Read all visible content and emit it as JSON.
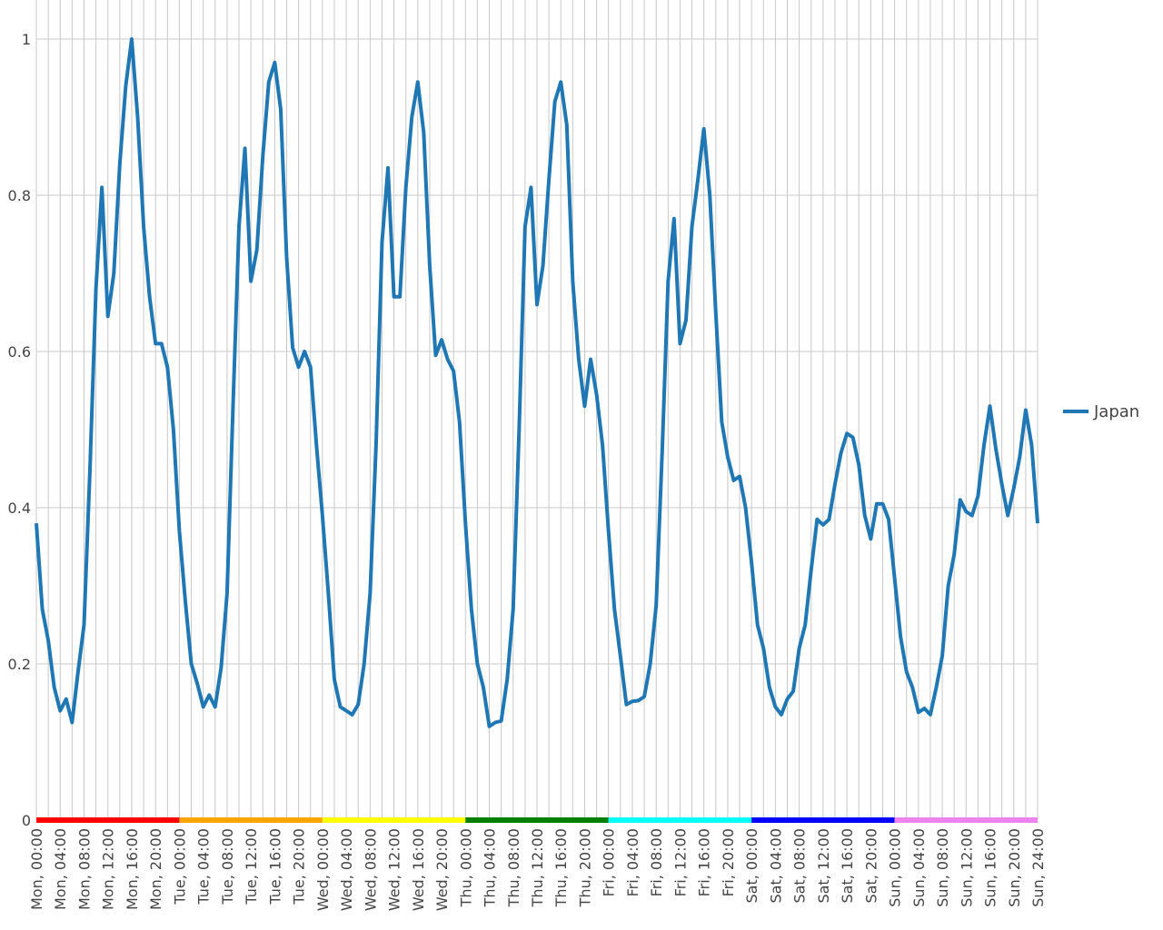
{
  "chart_data": {
    "type": "line",
    "title": "",
    "xlabel": "",
    "ylabel": "",
    "ylim": [
      0,
      1
    ],
    "yticks": [
      0,
      0.2,
      0.4,
      0.6,
      0.8,
      1
    ],
    "ytick_labels": [
      "0",
      "0.2",
      "0.4",
      "0.6",
      "0.8",
      "1"
    ],
    "xlim_hours": [
      0,
      168
    ],
    "xtick_labels": [
      "Mon, 00:00",
      "Mon, 04:00",
      "Mon, 08:00",
      "Mon, 12:00",
      "Mon, 16:00",
      "Mon, 20:00",
      "Tue, 00:00",
      "Tue, 04:00",
      "Tue, 08:00",
      "Tue, 12:00",
      "Tue, 16:00",
      "Tue, 20:00",
      "Wed, 00:00",
      "Wed, 04:00",
      "Wed, 08:00",
      "Wed, 12:00",
      "Wed, 16:00",
      "Wed, 20:00",
      "Thu, 00:00",
      "Thu, 04:00",
      "Thu, 08:00",
      "Thu, 12:00",
      "Thu, 16:00",
      "Thu, 20:00",
      "Fri, 00:00",
      "Fri, 04:00",
      "Fri, 08:00",
      "Fri, 12:00",
      "Fri, 16:00",
      "Fri, 20:00",
      "Sat, 00:00",
      "Sat, 04:00",
      "Sat, 08:00",
      "Sat, 12:00",
      "Sat, 16:00",
      "Sat, 20:00",
      "Sun, 00:00",
      "Sun, 04:00",
      "Sun, 08:00",
      "Sun, 12:00",
      "Sun, 16:00",
      "Sun, 20:00",
      "Sun, 24:00"
    ],
    "grid": true,
    "legend_position": "right",
    "day_band": [
      {
        "day": "Mon",
        "color": "#ff0000"
      },
      {
        "day": "Tue",
        "color": "#ffa500"
      },
      {
        "day": "Wed",
        "color": "#ffff00"
      },
      {
        "day": "Thu",
        "color": "#008000"
      },
      {
        "day": "Fri",
        "color": "#00ffff"
      },
      {
        "day": "Sat",
        "color": "#0000ff"
      },
      {
        "day": "Sun",
        "color": "#ee82ee"
      }
    ],
    "series": [
      {
        "name": "Japan",
        "color": "#1f77b4",
        "values": [
          0.38,
          0.27,
          0.23,
          0.17,
          0.14,
          0.155,
          0.125,
          0.19,
          0.25,
          0.45,
          0.68,
          0.81,
          0.645,
          0.7,
          0.84,
          0.94,
          1.0,
          0.9,
          0.76,
          0.67,
          0.61,
          0.61,
          0.58,
          0.5,
          0.37,
          0.28,
          0.2,
          0.175,
          0.145,
          0.16,
          0.145,
          0.195,
          0.29,
          0.53,
          0.76,
          0.86,
          0.69,
          0.73,
          0.85,
          0.945,
          0.97,
          0.91,
          0.72,
          0.605,
          0.58,
          0.6,
          0.58,
          0.48,
          0.39,
          0.29,
          0.18,
          0.145,
          0.14,
          0.135,
          0.148,
          0.2,
          0.29,
          0.48,
          0.74,
          0.835,
          0.67,
          0.67,
          0.81,
          0.9,
          0.945,
          0.88,
          0.71,
          0.595,
          0.615,
          0.59,
          0.575,
          0.51,
          0.38,
          0.27,
          0.2,
          0.17,
          0.12,
          0.125,
          0.127,
          0.18,
          0.27,
          0.5,
          0.76,
          0.81,
          0.66,
          0.71,
          0.82,
          0.92,
          0.945,
          0.89,
          0.69,
          0.59,
          0.53,
          0.59,
          0.545,
          0.48,
          0.37,
          0.27,
          0.21,
          0.148,
          0.152,
          0.153,
          0.158,
          0.2,
          0.275,
          0.47,
          0.69,
          0.77,
          0.61,
          0.64,
          0.76,
          0.82,
          0.885,
          0.8,
          0.65,
          0.51,
          0.465,
          0.435,
          0.44,
          0.4,
          0.33,
          0.25,
          0.22,
          0.17,
          0.145,
          0.135,
          0.155,
          0.165,
          0.22,
          0.25,
          0.32,
          0.385,
          0.378,
          0.385,
          0.43,
          0.47,
          0.495,
          0.49,
          0.455,
          0.39,
          0.36,
          0.405,
          0.405,
          0.385,
          0.31,
          0.235,
          0.19,
          0.17,
          0.138,
          0.143,
          0.135,
          0.17,
          0.21,
          0.3,
          0.34,
          0.41,
          0.395,
          0.39,
          0.415,
          0.48,
          0.53,
          0.475,
          0.43,
          0.39,
          0.425,
          0.465,
          0.525,
          0.48,
          0.38
        ]
      }
    ]
  }
}
